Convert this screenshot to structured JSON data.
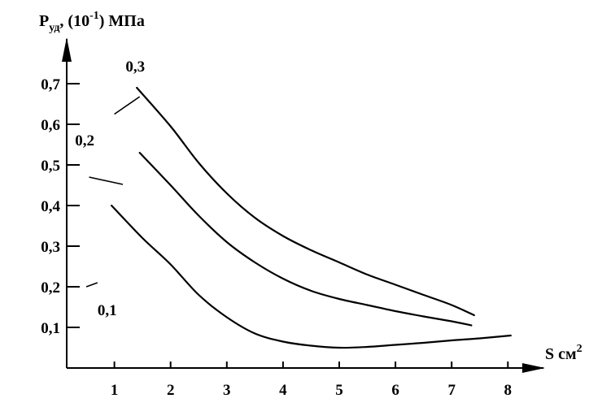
{
  "chart_data": {
    "type": "line",
    "title": "",
    "ylabel": {
      "main": "P",
      "sub": "уд",
      "middle": ", (10",
      "sup": "-1",
      "end": ") МПа"
    },
    "xlabel": {
      "main": "S см",
      "sup": "2"
    },
    "xlim": [
      0.2,
      8.5
    ],
    "ylim": [
      -0.01,
      0.78
    ],
    "xticks": [
      1,
      2,
      3,
      4,
      5,
      6,
      7,
      8
    ],
    "xtick_labels": [
      "1",
      "2",
      "3",
      "4",
      "5",
      "6",
      "7",
      "8"
    ],
    "yticks": [
      0.1,
      0.2,
      0.3,
      0.4,
      0.5,
      0.6,
      0.7
    ],
    "ytick_labels": [
      "0,1",
      "0,2",
      "0,3",
      "0,4",
      "0,5",
      "0,6",
      "0,7"
    ],
    "grid": false,
    "legend": "none",
    "series": [
      {
        "name": "0,3",
        "points": [
          [
            1.4,
            0.69
          ],
          [
            2.0,
            0.595
          ],
          [
            2.5,
            0.505
          ],
          [
            3.0,
            0.43
          ],
          [
            3.5,
            0.37
          ],
          [
            4.0,
            0.325
          ],
          [
            4.5,
            0.29
          ],
          [
            5.0,
            0.26
          ],
          [
            5.5,
            0.23
          ],
          [
            6.0,
            0.205
          ],
          [
            6.5,
            0.18
          ],
          [
            7.0,
            0.155
          ],
          [
            7.4,
            0.13
          ]
        ],
        "label_at": [
          1.2,
          0.73
        ],
        "leader": [
          [
            1.45,
            0.668
          ],
          [
            1.0,
            0.625
          ]
        ]
      },
      {
        "name": "0,2",
        "points": [
          [
            1.45,
            0.53
          ],
          [
            2.0,
            0.45
          ],
          [
            2.5,
            0.375
          ],
          [
            3.0,
            0.31
          ],
          [
            3.5,
            0.26
          ],
          [
            4.0,
            0.22
          ],
          [
            4.5,
            0.19
          ],
          [
            5.0,
            0.17
          ],
          [
            5.5,
            0.155
          ],
          [
            6.0,
            0.14
          ],
          [
            6.5,
            0.127
          ],
          [
            7.0,
            0.115
          ],
          [
            7.35,
            0.105
          ]
        ],
        "label_at": [
          0.3,
          0.548
        ],
        "leader": [
          [
            1.15,
            0.452
          ],
          [
            0.55,
            0.47
          ]
        ]
      },
      {
        "name": "0,1",
        "points": [
          [
            0.95,
            0.4
          ],
          [
            1.5,
            0.32
          ],
          [
            2.0,
            0.255
          ],
          [
            2.5,
            0.18
          ],
          [
            3.0,
            0.125
          ],
          [
            3.5,
            0.085
          ],
          [
            4.0,
            0.065
          ],
          [
            4.5,
            0.055
          ],
          [
            5.0,
            0.05
          ],
          [
            5.5,
            0.052
          ],
          [
            6.0,
            0.057
          ],
          [
            6.5,
            0.062
          ],
          [
            7.0,
            0.068
          ],
          [
            7.5,
            0.073
          ],
          [
            8.05,
            0.08
          ]
        ],
        "label_at": [
          0.7,
          0.13
        ],
        "leader": [
          [
            0.7,
            0.21
          ],
          [
            0.5,
            0.2
          ]
        ]
      }
    ]
  }
}
